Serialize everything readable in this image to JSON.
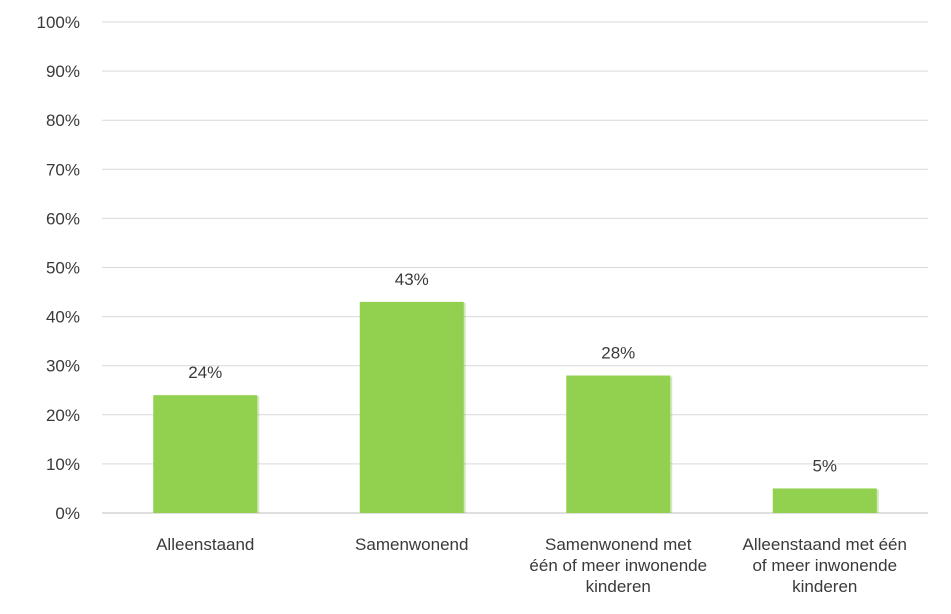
{
  "chart_data": {
    "type": "bar",
    "categories": [
      [
        "Alleenstaand"
      ],
      [
        "Samenwonend"
      ],
      [
        "Samenwonend met",
        "één of meer inwonende",
        "kinderen"
      ],
      [
        "Alleenstaand met één",
        "of meer inwonende",
        "kinderen"
      ]
    ],
    "values": [
      24,
      43,
      28,
      5
    ],
    "data_labels": [
      "24%",
      "43%",
      "28%",
      "5%"
    ],
    "y_ticks": [
      "0%",
      "10%",
      "20%",
      "30%",
      "40%",
      "50%",
      "60%",
      "70%",
      "80%",
      "90%",
      "100%"
    ],
    "ylim": [
      0,
      100
    ],
    "grid": true,
    "colors": {
      "bar": "#92d050",
      "bar_shadow": "#7fbf3f",
      "grid": "#d9d9d9",
      "text": "#3a3a3a"
    }
  }
}
